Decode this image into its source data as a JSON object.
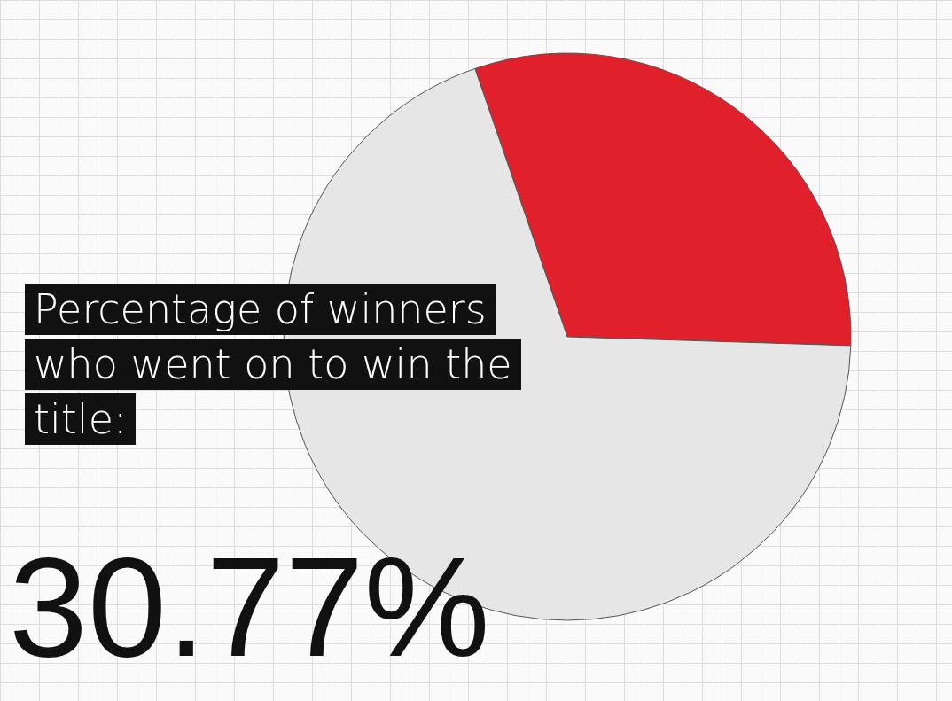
{
  "chart_data": {
    "type": "pie",
    "title": "Percentage of winners who went on to win the title:",
    "categories": [
      null,
      null
    ],
    "values": [
      30.77,
      69.23
    ],
    "colors": [
      "#e0202a",
      "#e6e6e6"
    ],
    "annotations": [
      "30.77%"
    ]
  }
}
